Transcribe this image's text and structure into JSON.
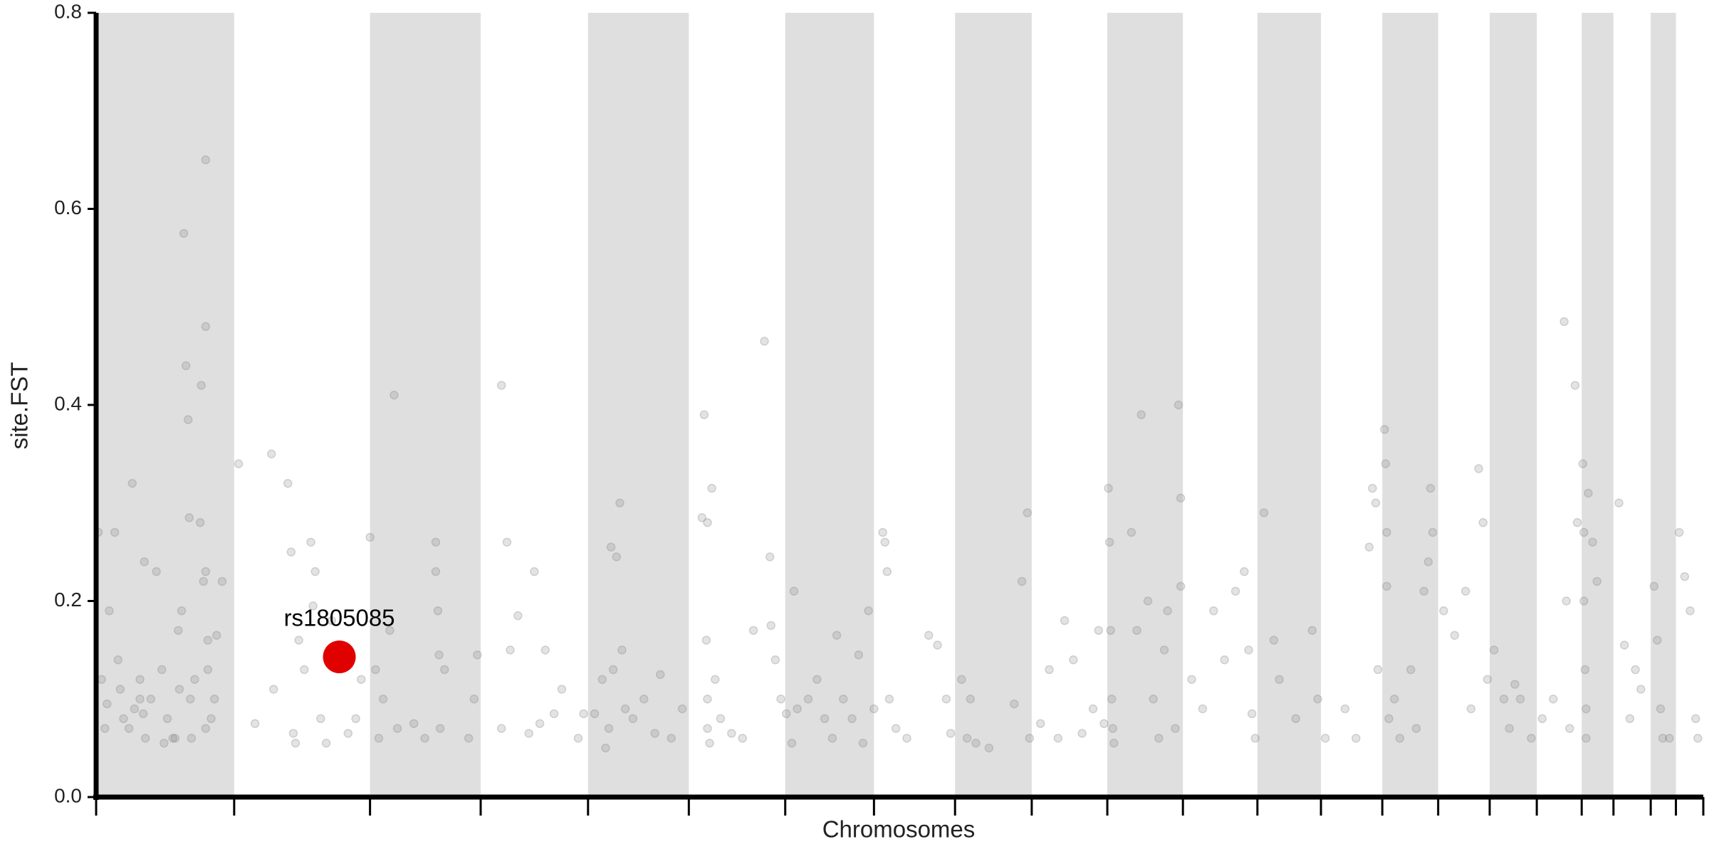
{
  "chart_data": {
    "type": "scatter",
    "ylabel": "site.FST",
    "xlabel": "Chromosomes",
    "xlim": [
      0,
      1467
    ],
    "ylim": [
      0,
      0.8
    ],
    "xticks": [
      0,
      126,
      250,
      351,
      449,
      541,
      629,
      710,
      784,
      854,
      923,
      992,
      1060,
      1118,
      1174,
      1225,
      1272,
      1315,
      1356,
      1385,
      1419,
      1442,
      1467
    ],
    "yticks": [
      {
        "value": 0,
        "label": "0.0"
      },
      0.2,
      0.4,
      0.6,
      0.8
    ],
    "bands": true,
    "band_color": "#dfdfdf",
    "color": "#808080",
    "x": [
      2,
      5,
      8,
      10,
      12,
      17,
      20,
      22,
      25,
      30,
      35,
      40,
      45,
      43,
      33,
      40,
      44,
      50,
      55,
      60,
      65,
      70,
      75,
      78,
      80,
      82,
      84,
      85,
      86,
      87,
      90,
      95,
      96,
      98,
      100,
      100,
      100,
      100,
      102,
      102,
      105,
      108,
      110,
      115,
      72,
      76,
      62,
      130,
      145,
      160,
      162,
      175,
      178,
      180,
      182,
      185,
      190,
      196,
      198,
      200,
      205,
      210,
      215,
      230,
      237,
      242,
      250,
      255,
      258,
      262,
      268,
      272,
      275,
      290,
      300,
      310,
      310,
      312,
      313,
      314,
      318,
      340,
      345,
      348,
      370,
      370,
      375,
      378,
      385,
      395,
      400,
      405,
      410,
      418,
      425,
      440,
      445,
      455,
      462,
      465,
      468,
      470,
      472,
      475,
      478,
      480,
      483,
      490,
      500,
      510,
      515,
      525,
      535,
      553,
      555,
      557,
      558,
      558,
      558,
      560,
      562,
      565,
      570,
      580,
      590,
      600,
      610,
      615,
      616,
      620,
      625,
      630,
      635,
      637,
      640,
      650,
      658,
      665,
      672,
      676,
      682,
      690,
      696,
      700,
      705,
      710,
      718,
      720,
      722,
      724,
      730,
      740,
      760,
      768,
      776,
      780,
      790,
      795,
      798,
      803,
      815,
      838,
      845,
      850,
      852,
      862,
      870,
      878,
      884,
      892,
      900,
      910,
      915,
      920,
      924,
      925,
      926,
      927,
      928,
      929,
      945,
      950,
      954,
      960,
      965,
      970,
      975,
      978,
      985,
      988,
      990,
      990,
      1000,
      1010,
      1020,
      1030,
      1040,
      1048,
      1052,
      1055,
      1058,
      1066,
      1075,
      1080,
      1095,
      1110,
      1115,
      1122,
      1140,
      1150,
      1162,
      1165,
      1168,
      1170,
      1176,
      1177,
      1178,
      1178,
      1180,
      1185,
      1190,
      1200,
      1205,
      1212,
      1216,
      1218,
      1220,
      1230,
      1240,
      1250,
      1255,
      1262,
      1266,
      1270,
      1276,
      1285,
      1290,
      1295,
      1300,
      1310,
      1320,
      1330,
      1340,
      1342,
      1345,
      1350,
      1352,
      1357,
      1358,
      1358,
      1359,
      1360,
      1360,
      1362,
      1366,
      1370,
      1390,
      1395,
      1400,
      1405,
      1410,
      1422,
      1425,
      1428,
      1430,
      1436,
      1445,
      1450,
      1455,
      1460,
      1462
    ],
    "values": [
      0.27,
      0.12,
      0.07,
      0.095,
      0.19,
      0.27,
      0.14,
      0.11,
      0.08,
      0.07,
      0.09,
      0.12,
      0.06,
      0.085,
      0.32,
      0.1,
      0.24,
      0.1,
      0.23,
      0.13,
      0.08,
      0.06,
      0.17,
      0.19,
      0.575,
      0.44,
      0.385,
      0.285,
      0.1,
      0.06,
      0.12,
      0.28,
      0.42,
      0.22,
      0.65,
      0.48,
      0.23,
      0.07,
      0.16,
      0.13,
      0.08,
      0.1,
      0.165,
      0.22,
      0.06,
      0.11,
      0.055,
      0.34,
      0.075,
      0.35,
      0.11,
      0.32,
      0.25,
      0.065,
      0.055,
      0.16,
      0.13,
      0.26,
      0.195,
      0.23,
      0.08,
      0.055,
      0.18,
      0.065,
      0.08,
      0.12,
      0.265,
      0.13,
      0.06,
      0.1,
      0.17,
      0.41,
      0.07,
      0.075,
      0.06,
      0.23,
      0.26,
      0.19,
      0.145,
      0.07,
      0.13,
      0.06,
      0.1,
      0.145,
      0.42,
      0.07,
      0.26,
      0.15,
      0.185,
      0.065,
      0.23,
      0.075,
      0.15,
      0.085,
      0.11,
      0.06,
      0.085,
      0.085,
      0.12,
      0.05,
      0.07,
      0.255,
      0.13,
      0.245,
      0.3,
      0.15,
      0.09,
      0.08,
      0.1,
      0.065,
      0.125,
      0.06,
      0.09,
      0.285,
      0.39,
      0.16,
      0.28,
      0.1,
      0.07,
      0.055,
      0.315,
      0.12,
      0.08,
      0.065,
      0.06,
      0.17,
      0.465,
      0.245,
      0.175,
      0.14,
      0.1,
      0.085,
      0.055,
      0.21,
      0.09,
      0.1,
      0.12,
      0.08,
      0.06,
      0.165,
      0.1,
      0.08,
      0.145,
      0.055,
      0.19,
      0.09,
      0.27,
      0.26,
      0.23,
      0.1,
      0.07,
      0.06,
      0.165,
      0.155,
      0.1,
      0.065,
      0.12,
      0.06,
      0.1,
      0.055,
      0.05,
      0.095,
      0.22,
      0.29,
      0.06,
      0.075,
      0.13,
      0.06,
      0.18,
      0.14,
      0.065,
      0.09,
      0.17,
      0.075,
      0.315,
      0.26,
      0.17,
      0.1,
      0.07,
      0.055,
      0.27,
      0.17,
      0.39,
      0.2,
      0.1,
      0.06,
      0.15,
      0.19,
      0.07,
      0.4,
      0.305,
      0.215,
      0.12,
      0.09,
      0.19,
      0.14,
      0.21,
      0.23,
      0.15,
      0.085,
      0.06,
      0.29,
      0.16,
      0.12,
      0.08,
      0.17,
      0.1,
      0.06,
      0.09,
      0.06,
      0.255,
      0.315,
      0.3,
      0.13,
      0.375,
      0.34,
      0.27,
      0.215,
      0.08,
      0.1,
      0.06,
      0.13,
      0.07,
      0.21,
      0.24,
      0.315,
      0.27,
      0.19,
      0.165,
      0.21,
      0.09,
      0.335,
      0.28,
      0.12,
      0.15,
      0.1,
      0.07,
      0.115,
      0.1,
      0.06,
      0.08,
      0.1,
      0.485,
      0.2,
      0.07,
      0.42,
      0.28,
      0.34,
      0.27,
      0.2,
      0.13,
      0.09,
      0.06,
      0.31,
      0.26,
      0.22,
      0.3,
      0.155,
      0.08,
      0.13,
      0.11,
      0.215,
      0.16,
      0.09,
      0.06,
      0.06,
      0.27,
      0.225,
      0.19,
      0.08,
      0.06
    ],
    "highlight": {
      "label": "rs1805085",
      "x": 222,
      "value": 0.143,
      "color": "#e00000"
    }
  }
}
